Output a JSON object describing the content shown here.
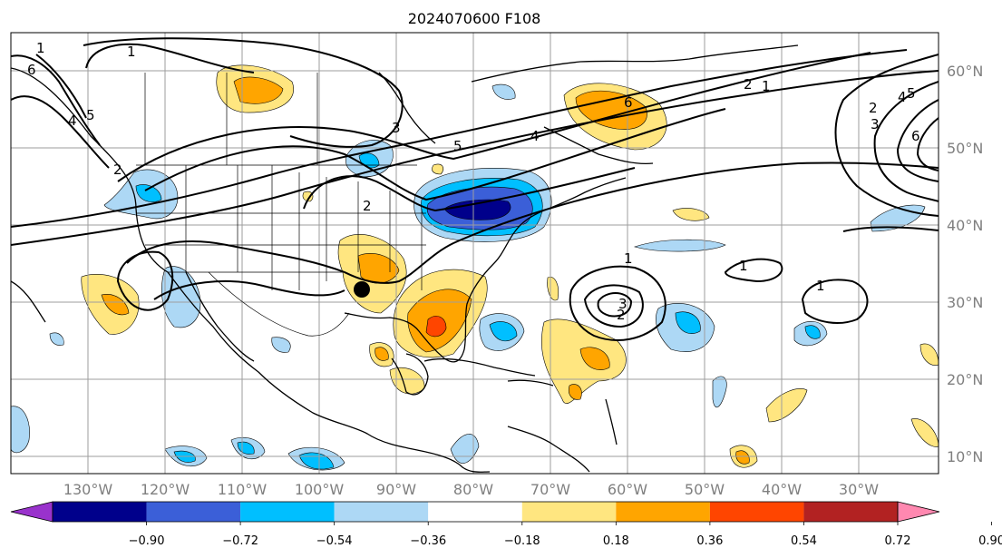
{
  "title": "2024070600 F108",
  "lon_ticks": [
    "130°W",
    "120°W",
    "110°W",
    "100°W",
    "90°W",
    "80°W",
    "70°W",
    "60°W",
    "50°W",
    "40°W",
    "30°W"
  ],
  "lat_ticks": [
    "60°N",
    "50°N",
    "40°N",
    "30°N",
    "20°N",
    "10°N"
  ],
  "colorbar": {
    "ticks": [
      "−0.90",
      "−0.72",
      "−0.54",
      "−0.36",
      "−0.18",
      "0.18",
      "0.36",
      "0.54",
      "0.72",
      "0.90"
    ],
    "colors": [
      "#9932cc",
      "#00008b",
      "#3b5fd8",
      "#00bfff",
      "#add8f5",
      "#ffffff",
      "#ffe680",
      "#ffa500",
      "#ff4500",
      "#b22222",
      "#ff88b0"
    ]
  },
  "contour_labels": [
    "1",
    "1",
    "2",
    "3",
    "4",
    "5",
    "6",
    "2",
    "1",
    "2",
    "3",
    "4",
    "5",
    "6",
    "1",
    "2",
    "3",
    "1",
    "1",
    "6",
    "5",
    "4",
    "2"
  ],
  "marker": "filled-circle"
}
